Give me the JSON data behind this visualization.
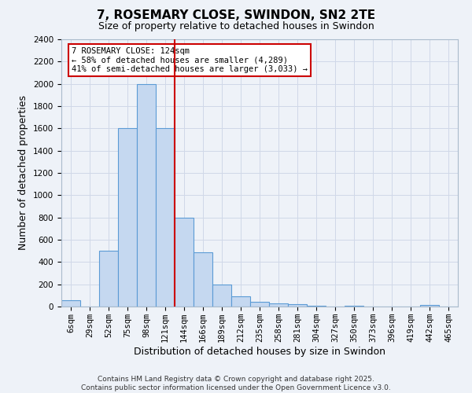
{
  "title": "7, ROSEMARY CLOSE, SWINDON, SN2 2TE",
  "subtitle": "Size of property relative to detached houses in Swindon",
  "xlabel": "Distribution of detached houses by size in Swindon",
  "ylabel": "Number of detached properties",
  "footer_line1": "Contains HM Land Registry data © Crown copyright and database right 2025.",
  "footer_line2": "Contains public sector information licensed under the Open Government Licence v3.0.",
  "bar_labels": [
    "6sqm",
    "29sqm",
    "52sqm",
    "75sqm",
    "98sqm",
    "121sqm",
    "144sqm",
    "166sqm",
    "189sqm",
    "212sqm",
    "235sqm",
    "258sqm",
    "281sqm",
    "304sqm",
    "327sqm",
    "350sqm",
    "373sqm",
    "396sqm",
    "419sqm",
    "442sqm",
    "465sqm"
  ],
  "bar_values": [
    55,
    0,
    500,
    1600,
    2000,
    1600,
    800,
    490,
    200,
    90,
    45,
    30,
    20,
    10,
    0,
    10,
    0,
    0,
    0,
    15,
    0
  ],
  "bar_color": "#c5d8f0",
  "bar_edge_color": "#5b9bd5",
  "bar_width": 1.0,
  "vline_x": 5.5,
  "vline_color": "#cc0000",
  "annotation_line1": "7 ROSEMARY CLOSE: 124sqm",
  "annotation_line2": "← 58% of detached houses are smaller (4,289)",
  "annotation_line3": "41% of semi-detached houses are larger (3,033) →",
  "annotation_box_color": "white",
  "annotation_box_edge": "#cc0000",
  "ylim": [
    0,
    2400
  ],
  "yticks": [
    0,
    200,
    400,
    600,
    800,
    1000,
    1200,
    1400,
    1600,
    1800,
    2000,
    2200,
    2400
  ],
  "grid_color": "#d0d8e8",
  "bg_color": "#eef2f8",
  "title_fontsize": 11,
  "subtitle_fontsize": 9,
  "axis_label_fontsize": 9,
  "tick_fontsize": 7.5,
  "annotation_fontsize": 7.5,
  "footer_fontsize": 6.5
}
